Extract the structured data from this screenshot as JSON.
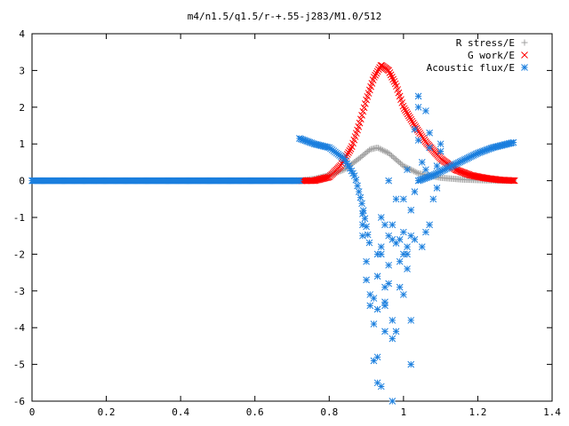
{
  "chart_data": {
    "type": "scatter",
    "title": "m4/n1.5/q1.5/r-+.55-j283/M1.0/512",
    "xlabel": "",
    "ylabel": "",
    "xlim": [
      0,
      1.4
    ],
    "ylim": [
      -6,
      4
    ],
    "grid": false,
    "legend_position": "top-right",
    "x_ticks": [
      "0",
      "0.2",
      "0.4",
      "0.6",
      "0.8",
      "1",
      "1.2",
      "1.4"
    ],
    "y_ticks": [
      "4",
      "3",
      "2",
      "1",
      "0",
      "-1",
      "-2",
      "-3",
      "-4",
      "-5",
      "-6"
    ],
    "series": [
      {
        "name": "R stress/E",
        "marker": "plus",
        "color": "#a0a0a0",
        "curve_x": [
          0.72,
          0.76,
          0.8,
          0.84,
          0.88,
          0.91,
          0.93,
          0.96,
          1.0,
          1.04,
          1.1,
          1.16,
          1.22,
          1.3
        ],
        "curve_y": [
          0.0,
          0.05,
          0.15,
          0.3,
          0.6,
          0.85,
          0.9,
          0.75,
          0.4,
          0.2,
          0.08,
          0.03,
          0.01,
          0.0
        ]
      },
      {
        "name": "G work/E",
        "marker": "x",
        "color": "#ff0000",
        "curve_x": [
          0.72,
          0.76,
          0.8,
          0.83,
          0.86,
          0.88,
          0.9,
          0.92,
          0.94,
          0.96,
          0.98,
          1.0,
          1.03,
          1.06,
          1.1,
          1.14,
          1.18,
          1.22,
          1.26,
          1.3
        ],
        "curve_y": [
          0.0,
          0.0,
          0.1,
          0.4,
          0.9,
          1.5,
          2.2,
          2.8,
          3.15,
          3.0,
          2.6,
          2.0,
          1.5,
          1.05,
          0.6,
          0.3,
          0.15,
          0.07,
          0.02,
          0.0
        ]
      },
      {
        "name": "Acoustic flux/E",
        "marker": "star",
        "color": "#1b7fde",
        "branch_left_x": [
          0.72,
          0.76,
          0.8,
          0.84,
          0.87,
          0.89,
          0.91
        ],
        "branch_left_y": [
          1.15,
          1.0,
          0.9,
          0.6,
          0.1,
          -0.7,
          -1.8
        ],
        "branch_right_x": [
          1.04,
          1.08,
          1.12,
          1.16,
          1.2,
          1.24,
          1.28,
          1.3
        ],
        "branch_right_y": [
          0.0,
          0.15,
          0.35,
          0.55,
          0.75,
          0.9,
          1.0,
          1.05
        ],
        "scattered_points": [
          [
            0.89,
            -0.9
          ],
          [
            0.89,
            -1.2
          ],
          [
            0.89,
            -1.5
          ],
          [
            0.9,
            -2.2
          ],
          [
            0.9,
            -2.7
          ],
          [
            0.91,
            -3.1
          ],
          [
            0.91,
            -3.4
          ],
          [
            0.92,
            -3.9
          ],
          [
            0.92,
            -3.2
          ],
          [
            0.93,
            -2.6
          ],
          [
            0.93,
            -3.5
          ],
          [
            0.93,
            -2.0
          ],
          [
            0.94,
            -1.8
          ],
          [
            0.94,
            -1.0
          ],
          [
            0.94,
            -2.0
          ],
          [
            0.95,
            -1.2
          ],
          [
            0.95,
            -2.9
          ],
          [
            0.95,
            -3.3
          ],
          [
            0.96,
            -2.3
          ],
          [
            0.96,
            -1.5
          ],
          [
            0.96,
            0.0
          ],
          [
            0.97,
            -1.6
          ],
          [
            0.97,
            -3.8
          ],
          [
            0.97,
            -4.3
          ],
          [
            0.97,
            -1.2
          ],
          [
            0.98,
            -0.5
          ],
          [
            0.98,
            -1.7
          ],
          [
            0.98,
            -4.1
          ],
          [
            0.99,
            -1.6
          ],
          [
            0.99,
            -2.9
          ],
          [
            1.0,
            -0.5
          ],
          [
            1.0,
            -1.4
          ],
          [
            1.0,
            -2.0
          ],
          [
            1.0,
            -3.1
          ],
          [
            1.01,
            -1.8
          ],
          [
            1.01,
            -2.4
          ],
          [
            1.01,
            0.3
          ],
          [
            1.02,
            -0.8
          ],
          [
            1.02,
            -1.5
          ],
          [
            1.02,
            -3.8
          ],
          [
            1.02,
            -5.0
          ],
          [
            1.03,
            -1.6
          ],
          [
            1.03,
            -0.3
          ],
          [
            1.03,
            1.4
          ],
          [
            1.04,
            2.3
          ],
          [
            1.04,
            1.1
          ],
          [
            1.05,
            -1.8
          ],
          [
            1.05,
            0.5
          ],
          [
            1.06,
            -1.4
          ],
          [
            1.06,
            0.3
          ],
          [
            1.06,
            1.9
          ],
          [
            1.07,
            -1.2
          ],
          [
            1.07,
            0.9
          ],
          [
            1.07,
            1.3
          ],
          [
            1.08,
            -0.5
          ],
          [
            1.09,
            -0.2
          ],
          [
            1.09,
            0.4
          ],
          [
            1.1,
            1.0
          ],
          [
            1.1,
            0.8
          ],
          [
            0.92,
            -4.9
          ],
          [
            0.93,
            -5.5
          ],
          [
            0.94,
            -5.6
          ],
          [
            0.97,
            -6.0
          ],
          [
            0.93,
            -4.8
          ],
          [
            1.01,
            -2.0
          ],
          [
            0.99,
            -2.2
          ],
          [
            0.96,
            -2.8
          ],
          [
            0.95,
            -3.4
          ],
          [
            0.95,
            -4.1
          ],
          [
            1.04,
            2.0
          ]
        ]
      }
    ]
  }
}
